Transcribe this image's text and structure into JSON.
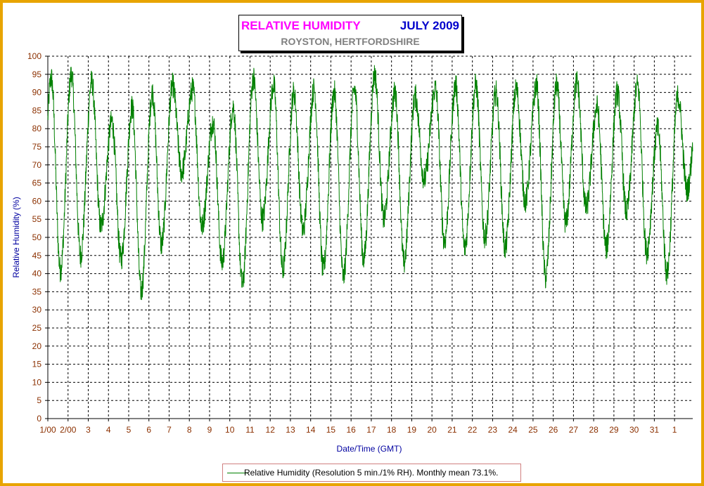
{
  "title": {
    "main": "RELATIVE HUMIDITY",
    "month": "JULY 2009",
    "location": "ROYSTON, HERTFORDSHIRE"
  },
  "colors": {
    "frame": "#e8a400",
    "series": "#008000",
    "axis_label": "#0000a0",
    "tick_label": "#8b3000",
    "title_main": "#ff00ff",
    "title_month": "#0000cc",
    "title_location": "#808080"
  },
  "legend": {
    "label": "Relative Humidity (Resolution 5 min./1% RH). Monthly mean 73.1%."
  },
  "chart_data": {
    "type": "line",
    "xlabel": "Date/Time (GMT)",
    "ylabel": "Relative Humidity (%)",
    "ylim": [
      0,
      100
    ],
    "yticks": [
      0,
      5,
      10,
      15,
      20,
      25,
      30,
      35,
      40,
      45,
      50,
      55,
      60,
      65,
      70,
      75,
      80,
      85,
      90,
      95,
      100
    ],
    "xlim": [
      1,
      32.9
    ],
    "xticks": [
      1,
      2,
      3,
      4,
      5,
      6,
      7,
      8,
      9,
      10,
      11,
      12,
      13,
      14,
      15,
      16,
      17,
      18,
      19,
      20,
      21,
      22,
      23,
      24,
      25,
      26,
      27,
      28,
      29,
      30,
      31,
      32
    ],
    "xtick_labels": [
      "1/00",
      "2/00",
      "3",
      "4",
      "5",
      "6",
      "7",
      "8",
      "9",
      "10",
      "11",
      "12",
      "13",
      "14",
      "15",
      "16",
      "17",
      "18",
      "19",
      "20",
      "21",
      "22",
      "23",
      "24",
      "25",
      "26",
      "27",
      "28",
      "29",
      "30",
      "31",
      "1"
    ],
    "grid": true,
    "daily_extremes": [
      {
        "day": 1,
        "max": 94,
        "min": 41
      },
      {
        "day": 2,
        "max": 95,
        "min": 45
      },
      {
        "day": 3,
        "max": 93,
        "min": 53
      },
      {
        "day": 4,
        "max": 82,
        "min": 44
      },
      {
        "day": 5,
        "max": 86,
        "min": 35
      },
      {
        "day": 6,
        "max": 90,
        "min": 48
      },
      {
        "day": 7,
        "max": 92,
        "min": 68
      },
      {
        "day": 8,
        "max": 91,
        "min": 53
      },
      {
        "day": 9,
        "max": 82,
        "min": 43
      },
      {
        "day": 10,
        "max": 86,
        "min": 37
      },
      {
        "day": 11,
        "max": 94,
        "min": 55
      },
      {
        "day": 12,
        "max": 92,
        "min": 41
      },
      {
        "day": 13,
        "max": 90,
        "min": 52
      },
      {
        "day": 14,
        "max": 91,
        "min": 41
      },
      {
        "day": 15,
        "max": 90,
        "min": 39
      },
      {
        "day": 16,
        "max": 91,
        "min": 44
      },
      {
        "day": 17,
        "max": 95,
        "min": 55
      },
      {
        "day": 18,
        "max": 90,
        "min": 43
      },
      {
        "day": 19,
        "max": 89,
        "min": 66
      },
      {
        "day": 20,
        "max": 91,
        "min": 49
      },
      {
        "day": 21,
        "max": 92,
        "min": 47
      },
      {
        "day": 22,
        "max": 92,
        "min": 50
      },
      {
        "day": 23,
        "max": 90,
        "min": 47
      },
      {
        "day": 24,
        "max": 91,
        "min": 60
      },
      {
        "day": 25,
        "max": 92,
        "min": 39
      },
      {
        "day": 26,
        "max": 92,
        "min": 54
      },
      {
        "day": 27,
        "max": 93,
        "min": 58
      },
      {
        "day": 28,
        "max": 86,
        "min": 47
      },
      {
        "day": 29,
        "max": 90,
        "min": 57
      },
      {
        "day": 30,
        "max": 92,
        "min": 46
      },
      {
        "day": 31,
        "max": 80,
        "min": 40
      },
      {
        "day": 32,
        "max": 89,
        "min": 63
      }
    ],
    "series": [
      {
        "name": "Relative Humidity (Resolution 5 min./1% RH). Monthly mean 73.1%."
      }
    ]
  }
}
